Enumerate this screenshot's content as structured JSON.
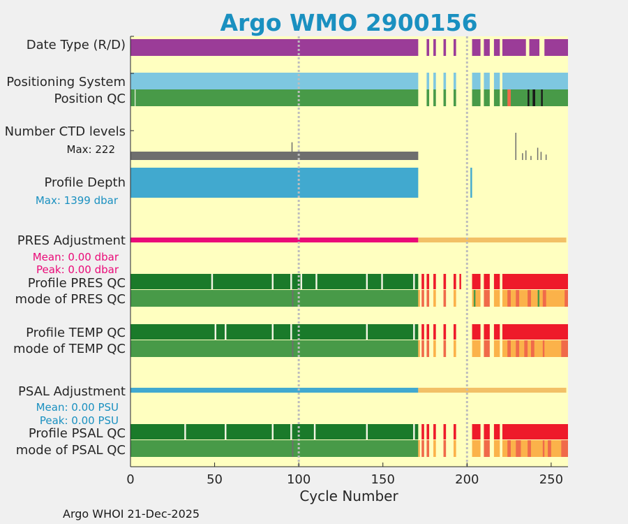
{
  "chart_data": {
    "type": "float-status-strip",
    "title": "Argo WMO 2900156",
    "xlabel": "Cycle Number",
    "xlim": [
      0,
      260
    ],
    "xticks": [
      0,
      50,
      100,
      150,
      200,
      250
    ],
    "reference_lines_x": [
      100,
      200
    ],
    "footer": "Argo WHOI 21-Dec-2025",
    "colors": {
      "background": "#ffffc0",
      "title": "#1a90c0",
      "real_time": "#9b3c98",
      "positioning": "#7ec7e0",
      "qc_good": "#489a48",
      "qc_dark": "#1a7a2a",
      "qc_red": "#ee1a2a",
      "qc_orange": "#fbb24a",
      "qc_coral": "#f06a4a",
      "gray": "#6e6e6e",
      "profile_depth": "#41a9cf",
      "pres_adj": "#ea0a78",
      "psal_adj": "#41a9cf",
      "adj_after": "#f2c067",
      "white": "#f6f6e6",
      "black": "#1a1a1a"
    },
    "row_labels": {
      "date_type": "Date Type (R/D)",
      "positioning": "Positioning System",
      "position_qc": "Position QC",
      "ctd_levels": "Number CTD levels",
      "profile_depth": "Profile Depth",
      "pres_adj": "PRES Adjustment",
      "profile_pres_qc": "Profile PRES QC",
      "mode_pres_qc": "mode of PRES QC",
      "profile_temp_qc": "Profile TEMP QC",
      "mode_temp_qc": "mode of TEMP QC",
      "psal_adj": "PSAL Adjustment",
      "profile_psal_qc": "Profile PSAL QC",
      "mode_psal_qc": "mode of PSAL QC"
    },
    "stats": {
      "ctd_max": "Max: 222",
      "depth_max": "Max: 1399 dbar",
      "pres_mean": "Mean: 0.00 dbar",
      "pres_peak": "Peak: 0.00 dbar",
      "psal_mean": "Mean: 0.00 PSU",
      "psal_peak": "Peak: 0.00 PSU"
    },
    "rows": {
      "date_type": [
        {
          "from": 0,
          "to": 171,
          "color": "real_time"
        },
        {
          "from": 176,
          "to": 177.5,
          "color": "real_time"
        },
        {
          "from": 180,
          "to": 181.5,
          "color": "real_time"
        },
        {
          "from": 186,
          "to": 187.5,
          "color": "real_time"
        },
        {
          "from": 192,
          "to": 193.5,
          "color": "real_time"
        },
        {
          "from": 203,
          "to": 208,
          "color": "real_time"
        },
        {
          "from": 210,
          "to": 213.5,
          "color": "real_time"
        },
        {
          "from": 216,
          "to": 219.5,
          "color": "real_time"
        },
        {
          "from": 221,
          "to": 235,
          "color": "real_time"
        },
        {
          "from": 237,
          "to": 243,
          "color": "real_time"
        },
        {
          "from": 246,
          "to": 260,
          "color": "real_time"
        }
      ],
      "positioning": [
        {
          "from": 0,
          "to": 171,
          "color": "positioning"
        },
        {
          "from": 176,
          "to": 177.5,
          "color": "positioning"
        },
        {
          "from": 180,
          "to": 181.5,
          "color": "positioning"
        },
        {
          "from": 186,
          "to": 187.5,
          "color": "positioning"
        },
        {
          "from": 192,
          "to": 193.5,
          "color": "positioning"
        },
        {
          "from": 203,
          "to": 208,
          "color": "positioning"
        },
        {
          "from": 210,
          "to": 213.5,
          "color": "positioning"
        },
        {
          "from": 216,
          "to": 219.5,
          "color": "positioning"
        },
        {
          "from": 221,
          "to": 260,
          "color": "positioning"
        }
      ],
      "position_qc": [
        {
          "from": 0,
          "to": 171,
          "color": "qc_good"
        },
        {
          "from": 2.5,
          "to": 3,
          "color": "white"
        },
        {
          "from": 176,
          "to": 177.5,
          "color": "qc_good"
        },
        {
          "from": 180,
          "to": 181.5,
          "color": "qc_good"
        },
        {
          "from": 186,
          "to": 187.5,
          "color": "qc_good"
        },
        {
          "from": 192,
          "to": 193.5,
          "color": "qc_good"
        },
        {
          "from": 203,
          "to": 208,
          "color": "qc_good"
        },
        {
          "from": 210,
          "to": 213.5,
          "color": "qc_good"
        },
        {
          "from": 216,
          "to": 219.5,
          "color": "qc_good"
        },
        {
          "from": 221,
          "to": 260,
          "color": "qc_good"
        },
        {
          "from": 224,
          "to": 226,
          "color": "qc_coral"
        },
        {
          "from": 236,
          "to": 237,
          "color": "black"
        },
        {
          "from": 239,
          "to": 240.5,
          "color": "black"
        },
        {
          "from": 244,
          "to": 245,
          "color": "black"
        }
      ],
      "ctd_levels": [
        {
          "from": 0,
          "to": 171,
          "color": "gray"
        }
      ],
      "ctd_levels_spikes": [
        {
          "at": 96,
          "level": 0.65
        },
        {
          "at": 229,
          "level": 1.0
        },
        {
          "at": 233,
          "level": 0.25
        },
        {
          "at": 235,
          "level": 0.35
        },
        {
          "at": 238,
          "level": 0.15
        },
        {
          "at": 242,
          "level": 0.45
        },
        {
          "at": 244,
          "level": 0.3
        },
        {
          "at": 247,
          "level": 0.2
        }
      ],
      "profile_depth": [
        {
          "from": 0,
          "to": 171,
          "color": "profile_depth"
        },
        {
          "from": 202,
          "to": 203,
          "color": "profile_depth"
        }
      ],
      "pres_adj": [
        {
          "from": 0,
          "to": 171,
          "color": "pres_adj"
        },
        {
          "from": 171,
          "to": 259,
          "color": "adj_after"
        }
      ],
      "profile_pres_qc": [
        {
          "from": 0,
          "to": 171,
          "color": "qc_dark"
        },
        {
          "from": 48,
          "to": 49,
          "color": "white"
        },
        {
          "from": 84,
          "to": 85,
          "color": "white"
        },
        {
          "from": 95,
          "to": 96,
          "color": "white"
        },
        {
          "from": 101,
          "to": 102,
          "color": "white"
        },
        {
          "from": 110,
          "to": 111,
          "color": "white"
        },
        {
          "from": 140,
          "to": 141,
          "color": "white"
        },
        {
          "from": 149,
          "to": 150,
          "color": "white"
        },
        {
          "from": 168,
          "to": 169,
          "color": "white"
        },
        {
          "from": 173,
          "to": 174.5,
          "color": "qc_red"
        },
        {
          "from": 176,
          "to": 177.5,
          "color": "qc_red"
        },
        {
          "from": 180,
          "to": 181.5,
          "color": "qc_red"
        },
        {
          "from": 186,
          "to": 187.5,
          "color": "qc_red"
        },
        {
          "from": 192,
          "to": 193.5,
          "color": "qc_red"
        },
        {
          "from": 195.5,
          "to": 196.5,
          "color": "qc_red"
        },
        {
          "from": 203,
          "to": 208,
          "color": "qc_red"
        },
        {
          "from": 210,
          "to": 213.5,
          "color": "qc_red"
        },
        {
          "from": 216,
          "to": 219.5,
          "color": "qc_red"
        },
        {
          "from": 221,
          "to": 260,
          "color": "qc_red"
        }
      ],
      "mode_pres_qc": [
        {
          "from": 0,
          "to": 171,
          "color": "qc_good"
        },
        {
          "from": 96,
          "to": 96.8,
          "color": "gray"
        },
        {
          "from": 171,
          "to": 172,
          "color": "qc_orange"
        },
        {
          "from": 173,
          "to": 174.5,
          "color": "qc_coral"
        },
        {
          "from": 176,
          "to": 177.5,
          "color": "qc_coral"
        },
        {
          "from": 180,
          "to": 181.5,
          "color": "qc_orange"
        },
        {
          "from": 186,
          "to": 187.5,
          "color": "qc_coral"
        },
        {
          "from": 192,
          "to": 193.5,
          "color": "qc_orange"
        },
        {
          "from": 203,
          "to": 208,
          "color": "qc_orange"
        },
        {
          "from": 204,
          "to": 205,
          "color": "qc_good"
        },
        {
          "from": 210,
          "to": 213.5,
          "color": "qc_coral"
        },
        {
          "from": 216,
          "to": 219.5,
          "color": "qc_orange"
        },
        {
          "from": 221,
          "to": 260,
          "color": "qc_orange"
        },
        {
          "from": 224,
          "to": 226,
          "color": "qc_coral"
        },
        {
          "from": 229,
          "to": 231,
          "color": "qc_coral"
        },
        {
          "from": 236,
          "to": 238,
          "color": "qc_coral"
        },
        {
          "from": 242,
          "to": 243,
          "color": "qc_good"
        },
        {
          "from": 245,
          "to": 247,
          "color": "qc_coral"
        },
        {
          "from": 258,
          "to": 260,
          "color": "qc_coral"
        }
      ],
      "profile_temp_qc": [
        {
          "from": 0,
          "to": 171,
          "color": "qc_dark"
        },
        {
          "from": 50,
          "to": 51,
          "color": "white"
        },
        {
          "from": 56,
          "to": 57,
          "color": "white"
        },
        {
          "from": 84,
          "to": 85,
          "color": "white"
        },
        {
          "from": 95,
          "to": 96,
          "color": "white"
        },
        {
          "from": 140,
          "to": 141,
          "color": "white"
        },
        {
          "from": 168,
          "to": 169,
          "color": "white"
        },
        {
          "from": 173,
          "to": 174.5,
          "color": "qc_red"
        },
        {
          "from": 176,
          "to": 177.5,
          "color": "qc_red"
        },
        {
          "from": 180,
          "to": 181.5,
          "color": "qc_red"
        },
        {
          "from": 186,
          "to": 187.5,
          "color": "qc_red"
        },
        {
          "from": 192,
          "to": 193.5,
          "color": "qc_red"
        },
        {
          "from": 203,
          "to": 208,
          "color": "qc_red"
        },
        {
          "from": 210,
          "to": 213.5,
          "color": "qc_red"
        },
        {
          "from": 216,
          "to": 219.5,
          "color": "qc_red"
        },
        {
          "from": 221,
          "to": 260,
          "color": "qc_red"
        }
      ],
      "mode_temp_qc": [
        {
          "from": 0,
          "to": 171,
          "color": "qc_good"
        },
        {
          "from": 96,
          "to": 96.8,
          "color": "gray"
        },
        {
          "from": 171,
          "to": 172,
          "color": "qc_orange"
        },
        {
          "from": 173,
          "to": 174.5,
          "color": "qc_coral"
        },
        {
          "from": 176,
          "to": 177.5,
          "color": "qc_coral"
        },
        {
          "from": 180,
          "to": 181.5,
          "color": "qc_orange"
        },
        {
          "from": 186,
          "to": 187.5,
          "color": "qc_coral"
        },
        {
          "from": 192,
          "to": 193.5,
          "color": "qc_orange"
        },
        {
          "from": 203,
          "to": 208,
          "color": "qc_orange"
        },
        {
          "from": 210,
          "to": 213.5,
          "color": "qc_coral"
        },
        {
          "from": 216,
          "to": 219.5,
          "color": "qc_orange"
        },
        {
          "from": 221,
          "to": 260,
          "color": "qc_orange"
        },
        {
          "from": 224,
          "to": 226,
          "color": "qc_coral"
        },
        {
          "from": 229,
          "to": 231,
          "color": "qc_coral"
        },
        {
          "from": 234,
          "to": 236,
          "color": "qc_coral"
        },
        {
          "from": 238,
          "to": 240,
          "color": "qc_coral"
        },
        {
          "from": 245,
          "to": 246,
          "color": "qc_coral"
        },
        {
          "from": 256,
          "to": 260,
          "color": "qc_coral"
        }
      ],
      "psal_adj": [
        {
          "from": 0,
          "to": 171,
          "color": "psal_adj"
        },
        {
          "from": 171,
          "to": 259,
          "color": "adj_after"
        }
      ],
      "profile_psal_qc": [
        {
          "from": 0,
          "to": 171,
          "color": "qc_dark"
        },
        {
          "from": 32,
          "to": 33,
          "color": "white"
        },
        {
          "from": 56,
          "to": 57,
          "color": "white"
        },
        {
          "from": 84,
          "to": 85,
          "color": "white"
        },
        {
          "from": 95,
          "to": 96,
          "color": "white"
        },
        {
          "from": 109,
          "to": 110,
          "color": "white"
        },
        {
          "from": 140,
          "to": 141,
          "color": "white"
        },
        {
          "from": 168,
          "to": 169,
          "color": "white"
        },
        {
          "from": 173,
          "to": 174.5,
          "color": "qc_red"
        },
        {
          "from": 176,
          "to": 177.5,
          "color": "qc_red"
        },
        {
          "from": 180,
          "to": 181.5,
          "color": "qc_red"
        },
        {
          "from": 186,
          "to": 187.5,
          "color": "qc_red"
        },
        {
          "from": 192,
          "to": 193.5,
          "color": "qc_red"
        },
        {
          "from": 203,
          "to": 208,
          "color": "qc_red"
        },
        {
          "from": 210,
          "to": 213.5,
          "color": "qc_red"
        },
        {
          "from": 216,
          "to": 219.5,
          "color": "qc_red"
        },
        {
          "from": 221,
          "to": 260,
          "color": "qc_red"
        }
      ],
      "mode_psal_qc": [
        {
          "from": 0,
          "to": 171,
          "color": "qc_good"
        },
        {
          "from": 96,
          "to": 96.8,
          "color": "gray"
        },
        {
          "from": 171,
          "to": 172,
          "color": "qc_orange"
        },
        {
          "from": 173,
          "to": 174.5,
          "color": "qc_coral"
        },
        {
          "from": 176,
          "to": 177.5,
          "color": "qc_coral"
        },
        {
          "from": 180,
          "to": 181.5,
          "color": "qc_orange"
        },
        {
          "from": 186,
          "to": 187.5,
          "color": "qc_coral"
        },
        {
          "from": 192,
          "to": 193.5,
          "color": "qc_orange"
        },
        {
          "from": 203,
          "to": 208,
          "color": "qc_orange"
        },
        {
          "from": 210,
          "to": 213.5,
          "color": "qc_coral"
        },
        {
          "from": 216,
          "to": 219.5,
          "color": "qc_orange"
        },
        {
          "from": 221,
          "to": 260,
          "color": "qc_orange"
        },
        {
          "from": 224,
          "to": 226,
          "color": "qc_coral"
        },
        {
          "from": 229,
          "to": 232,
          "color": "qc_coral"
        },
        {
          "from": 236,
          "to": 238,
          "color": "qc_coral"
        },
        {
          "from": 245,
          "to": 246,
          "color": "qc_coral"
        },
        {
          "from": 248,
          "to": 250,
          "color": "qc_coral"
        },
        {
          "from": 256,
          "to": 260,
          "color": "qc_coral"
        }
      ]
    }
  }
}
